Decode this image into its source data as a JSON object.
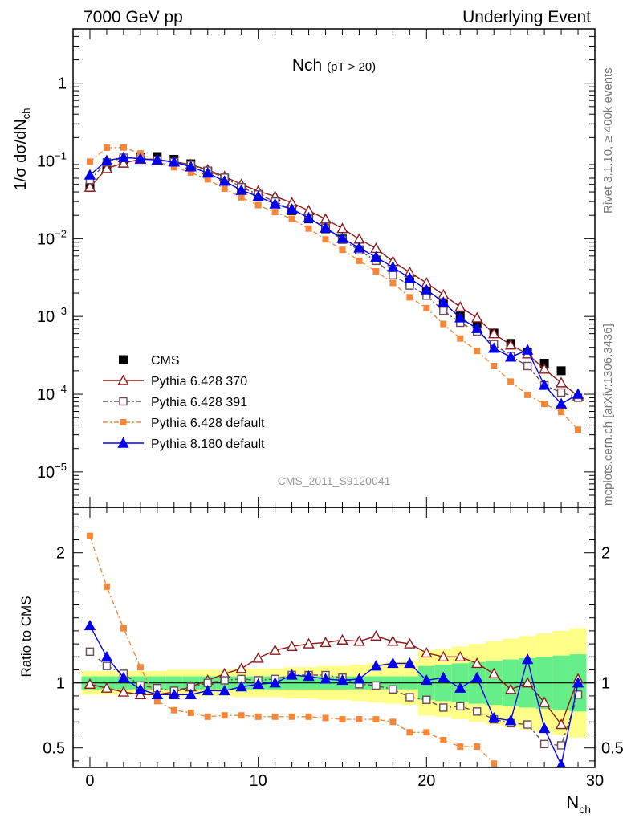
{
  "header": {
    "left": "7000 GeV pp",
    "right": "Underlying Event"
  },
  "side_labels": {
    "rivet": "Rivet 3.1.10, ≥ 400k events",
    "mcplots": "mcplots.cern.ch [arXiv:1306.3436]"
  },
  "chart_data": [
    {
      "type": "scatter",
      "panel": "main",
      "title": "Nch",
      "title_suffix": "(pT > 20)",
      "ylabel": "1/σ dσ/dN",
      "ylabel_sub": "ch",
      "watermark": "CMS_2011_S9120041",
      "yscale": "log",
      "xlim": [
        -1,
        30
      ],
      "ylim": [
        3.5e-06,
        5
      ],
      "ytick_values": [
        1,
        0.1,
        0.01,
        0.001,
        0.0001,
        1e-05
      ],
      "ytick_labels": [
        {
          "base": "1",
          "exp": ""
        },
        {
          "base": "10",
          "exp": "−1"
        },
        {
          "base": "10",
          "exp": "−2"
        },
        {
          "base": "10",
          "exp": "−3"
        },
        {
          "base": "10",
          "exp": "−4"
        },
        {
          "base": "10",
          "exp": "−5"
        }
      ],
      "x": [
        0,
        1,
        2,
        3,
        4,
        5,
        6,
        7,
        8,
        9,
        10,
        11,
        12,
        13,
        14,
        15,
        16,
        17,
        18,
        19,
        20,
        21,
        22,
        23,
        24,
        25,
        26,
        27,
        28,
        29
      ],
      "series": [
        {
          "name": "CMS",
          "color": "#000000",
          "marker": "square-filled",
          "values": [
            0.046,
            0.085,
            0.105,
            0.112,
            0.114,
            0.105,
            0.092,
            0.074,
            0.059,
            0.045,
            0.037,
            0.029,
            0.023,
            0.018,
            0.0134,
            0.0099,
            0.0072,
            0.0053,
            0.0038,
            0.0028,
            0.0021,
            0.00144,
            0.00101,
            0.00082,
            0.00061,
            0.00045,
            0.00034,
            0.00025,
            0.0002,
            null
          ]
        },
        {
          "name": "Pythia 6.428 370",
          "color": "#8b1a1a",
          "marker": "triangle-open",
          "values": [
            0.046,
            0.08,
            0.094,
            0.105,
            0.104,
            0.098,
            0.09,
            0.077,
            0.063,
            0.05,
            0.041,
            0.035,
            0.029,
            0.023,
            0.0179,
            0.0135,
            0.0099,
            0.0075,
            0.0051,
            0.0037,
            0.0027,
            0.0019,
            0.00132,
            0.00096,
            0.0006,
            0.00043,
            0.00033,
            0.00021,
            0.00014,
            9.5e-05
          ]
        },
        {
          "name": "Pythia 6.428 391",
          "color": "#6b4a5a",
          "marker": "square-open",
          "values": [
            0.057,
            0.096,
            0.11,
            0.108,
            0.102,
            0.097,
            0.089,
            0.075,
            0.061,
            0.046,
            0.037,
            0.03,
            0.024,
            0.0185,
            0.0137,
            0.0097,
            0.0071,
            0.0052,
            0.0034,
            0.0025,
            0.00185,
            0.00118,
            0.00083,
            0.00064,
            0.00044,
            0.00031,
            0.00023,
            0.00013,
            0.000105,
            9e-05
          ]
        },
        {
          "name": "Pythia 6.428 default",
          "color": "#f5873a",
          "marker": "square-small-filled",
          "values": [
            0.098,
            0.148,
            0.149,
            0.125,
            0.098,
            0.083,
            0.071,
            0.058,
            0.044,
            0.034,
            0.027,
            0.022,
            0.018,
            0.0135,
            0.0098,
            0.0072,
            0.0052,
            0.0038,
            0.0027,
            0.00176,
            0.00128,
            0.0008,
            0.00052,
            0.00036,
            0.00023,
            0.000145,
            9.8e-05,
            7.5e-05,
            5.9e-05,
            3.5e-05
          ]
        },
        {
          "name": "Pythia 8.180 default",
          "color": "#0000ee",
          "marker": "triangle-filled",
          "values": [
            0.066,
            0.101,
            0.111,
            0.107,
            0.103,
            0.097,
            0.084,
            0.07,
            0.055,
            0.042,
            0.035,
            0.028,
            0.024,
            0.0186,
            0.0137,
            0.0101,
            0.0076,
            0.0058,
            0.0043,
            0.0031,
            0.0022,
            0.00152,
            0.00096,
            0.0007,
            0.00039,
            0.0003,
            0.00037,
            0.00013,
            7.5e-05,
            0.0001
          ]
        }
      ]
    },
    {
      "type": "scatter",
      "panel": "ratio",
      "ylabel": "Ratio to CMS",
      "xlabel": "N",
      "xlabel_sub": "ch",
      "xlim": [
        -1,
        30
      ],
      "ylim": [
        0.35,
        2.35
      ],
      "xticks": [
        0,
        10,
        20,
        30
      ],
      "yticks": [
        0.5,
        1,
        2
      ],
      "reference": 1,
      "band_inner_color": "#66ee88",
      "band_outer_color": "#ffff88",
      "band_inner_halfwidth": [
        0.05,
        0.05,
        0.05,
        0.05,
        0.05,
        0.05,
        0.05,
        0.05,
        0.05,
        0.05,
        0.05,
        0.05,
        0.05,
        0.05,
        0.05,
        0.05,
        0.05,
        0.05,
        0.05,
        0.05,
        0.13,
        0.14,
        0.15,
        0.16,
        0.17,
        0.18,
        0.19,
        0.2,
        0.21,
        0.22
      ],
      "band_outer_halfwidth": [
        0.09,
        0.09,
        0.09,
        0.09,
        0.09,
        0.1,
        0.1,
        0.1,
        0.1,
        0.11,
        0.11,
        0.11,
        0.12,
        0.12,
        0.13,
        0.13,
        0.14,
        0.15,
        0.16,
        0.17,
        0.25,
        0.26,
        0.28,
        0.3,
        0.32,
        0.34,
        0.36,
        0.38,
        0.4,
        0.42
      ],
      "x": [
        0,
        1,
        2,
        3,
        4,
        5,
        6,
        7,
        8,
        9,
        10,
        11,
        12,
        13,
        14,
        15,
        16,
        17,
        18,
        19,
        20,
        21,
        22,
        23,
        24,
        25,
        26,
        27,
        28,
        29
      ],
      "series": [
        {
          "name": "Pythia 6.428 370",
          "color": "#8b1a1a",
          "marker": "triangle-open",
          "values": [
            0.99,
            0.96,
            0.93,
            0.91,
            0.91,
            0.93,
            0.97,
            1.02,
            1.07,
            1.11,
            1.19,
            1.25,
            1.28,
            1.3,
            1.31,
            1.33,
            1.32,
            1.36,
            1.32,
            1.3,
            1.23,
            1.2,
            1.2,
            1.15,
            1.07,
            0.95,
            1.0,
            0.85,
            0.68,
            1.03
          ]
        },
        {
          "name": "Pythia 6.428 391",
          "color": "#6b4a5a",
          "marker": "square-open",
          "values": [
            1.24,
            1.13,
            1.07,
            0.98,
            0.96,
            0.94,
            0.97,
            1.0,
            1.02,
            1.03,
            1.02,
            1.03,
            1.06,
            1.06,
            1.06,
            1.04,
            0.99,
            0.98,
            0.95,
            0.89,
            0.87,
            0.81,
            0.82,
            0.78,
            0.72,
            0.69,
            0.68,
            0.53,
            0.52,
            0.91
          ]
        },
        {
          "name": "Pythia 6.428 default",
          "color": "#f5873a",
          "marker": "square-small-filled",
          "values": [
            2.13,
            1.74,
            1.42,
            1.12,
            0.86,
            0.79,
            0.77,
            0.74,
            0.75,
            0.75,
            0.74,
            0.74,
            0.74,
            0.74,
            0.73,
            0.72,
            0.72,
            0.72,
            0.7,
            0.62,
            0.62,
            0.56,
            0.51,
            0.51,
            0.38,
            null,
            null,
            null,
            null,
            null
          ]
        },
        {
          "name": "Pythia 8.180 default",
          "color": "#0000ee",
          "marker": "triangle-filled",
          "values": [
            1.44,
            1.2,
            1.04,
            0.95,
            0.91,
            0.91,
            0.91,
            0.94,
            0.94,
            0.97,
            0.99,
            1.0,
            1.06,
            1.05,
            1.03,
            1.02,
            1.03,
            1.13,
            1.15,
            1.15,
            1.02,
            1.04,
            0.96,
            1.04,
            0.73,
            0.71,
            1.18,
            0.65,
            0.37,
            1.0
          ]
        }
      ]
    }
  ]
}
